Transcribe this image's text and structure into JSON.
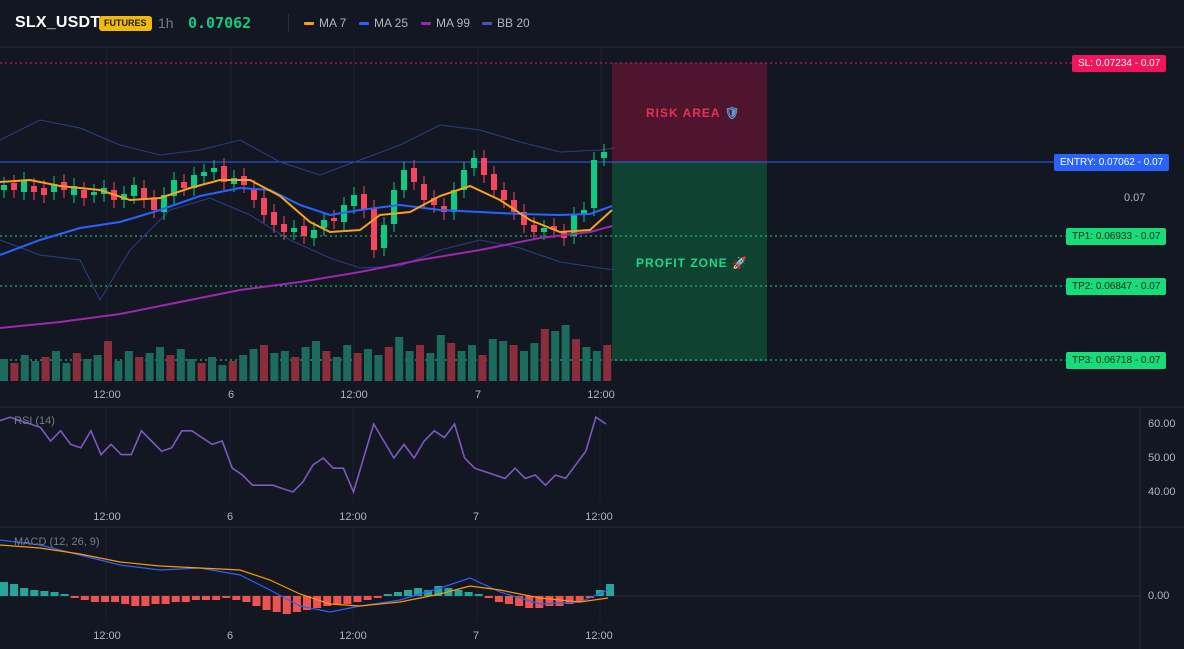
{
  "header": {
    "symbol": "SLX_USDT",
    "badge": "FUTURES",
    "timeframe": "1h",
    "price": "0.07062",
    "indicators": [
      {
        "label": "MA 7",
        "color": "#f7a21b"
      },
      {
        "label": "MA 25",
        "color": "#2962ff"
      },
      {
        "label": "MA 99",
        "color": "#9c27b0"
      },
      {
        "label": "BB 20",
        "color": "#283f85"
      }
    ]
  },
  "levels": {
    "sl": "SL: 0.07234 - 0.07",
    "entry": "ENTRY: 0.07062 - 0.07",
    "tp1": "TP1: 0.06933 - 0.07",
    "tp2": "TP2: 0.06847 - 0.07",
    "tp3": "TP3: 0.06718 - 0.07",
    "axis_price": "0.07"
  },
  "zones": {
    "risk": "RISK AREA",
    "profit": "PROFIT ZONE"
  },
  "colors": {
    "up": "#0ecb81",
    "down": "#f6465d",
    "vol_up": "#1d6b5c",
    "vol_down": "#8a2e3c",
    "sl": "#f6465d",
    "entry": "#2962ff",
    "tp": "#0ecb81"
  },
  "xaxis": {
    "ticks": [
      "12:00",
      "6",
      "12:00",
      "7",
      "12:00"
    ]
  },
  "rsi": {
    "label": "RSI (14)",
    "ticks": [
      "60.00",
      "50.00",
      "40.00"
    ],
    "values": [
      61,
      62,
      61,
      60,
      59,
      55,
      58,
      54,
      53,
      58,
      51,
      54,
      51,
      51,
      58,
      55,
      52,
      53,
      58,
      58,
      56,
      54,
      55,
      47,
      45,
      42,
      42,
      42,
      41,
      40,
      43,
      48,
      50,
      47,
      47,
      40,
      50,
      60,
      55,
      50,
      54,
      50,
      55,
      58,
      56,
      60,
      50,
      47,
      46,
      45,
      44,
      47,
      44,
      45,
      42,
      45,
      44,
      48,
      52,
      62,
      60
    ]
  },
  "macd": {
    "label": "MACD (12, 26, 9)",
    "ticks": [
      "0.00"
    ]
  }
}
